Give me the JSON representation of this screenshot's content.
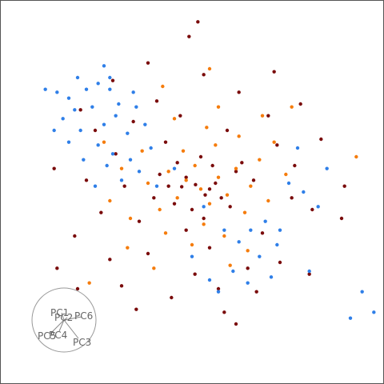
{
  "chart_data": {
    "type": "scatter",
    "title": "",
    "xlabel": "",
    "ylabel": "",
    "grid": false,
    "legend": "none",
    "xlim": [
      -6,
      6
    ],
    "ylim": [
      -6,
      6
    ],
    "series": [
      {
        "color": "#7a0b0b",
        "note_count_estimate": 1100,
        "points": [
          [
            -0.35,
            0.18
          ],
          [
            0.12,
            0.25
          ],
          [
            0.45,
            -0.1
          ],
          [
            -0.6,
            -0.4
          ],
          [
            0.8,
            0.3
          ],
          [
            -1.1,
            0.6
          ],
          [
            1.3,
            -0.5
          ],
          [
            -0.2,
            -1.3
          ],
          [
            0.3,
            1.2
          ],
          [
            1.7,
            1.0
          ],
          [
            -1.8,
            -1.0
          ],
          [
            2.1,
            0.4
          ],
          [
            -2.3,
            0.2
          ],
          [
            0.6,
            -1.9
          ],
          [
            -0.9,
            1.7
          ],
          [
            2.4,
            -1.4
          ],
          [
            -1.5,
            -2.1
          ],
          [
            1.2,
            2.1
          ],
          [
            -2.6,
            1.3
          ],
          [
            2.9,
            1.6
          ],
          [
            -3.1,
            -0.7
          ],
          [
            3.4,
            -0.2
          ],
          [
            0.1,
            -2.8
          ],
          [
            -0.4,
            2.6
          ],
          [
            1.9,
            -2.6
          ],
          [
            -2.0,
            2.4
          ],
          [
            2.6,
            2.6
          ],
          [
            -2.8,
            -2.3
          ],
          [
            3.5,
            0.9
          ],
          [
            -3.6,
            0.4
          ],
          [
            0.9,
            -3.3
          ],
          [
            -1.2,
            3.1
          ],
          [
            4.1,
            -0.6
          ],
          [
            -4.0,
            -1.5
          ],
          [
            1.6,
            3.4
          ],
          [
            -0.7,
            -3.6
          ],
          [
            2.2,
            -3.4
          ],
          [
            -3.3,
            2.1
          ],
          [
            3.0,
            -2.4
          ],
          [
            -2.4,
            -3.2
          ],
          [
            4.4,
            1.8
          ],
          [
            -1.9,
            -4.0
          ],
          [
            0.4,
            4.0
          ],
          [
            3.7,
            3.0
          ],
          [
            -3.8,
            2.8
          ],
          [
            1.1,
            -4.1
          ],
          [
            5.1,
            -0.9
          ],
          [
            -4.6,
            -2.6
          ],
          [
            0.2,
            5.8
          ],
          [
            -0.1,
            5.3
          ],
          [
            2.8,
            4.1
          ],
          [
            -2.7,
            3.8
          ],
          [
            4.0,
            -2.8
          ],
          [
            -3.9,
            -3.3
          ],
          [
            5.2,
            0.2
          ],
          [
            -4.7,
            0.8
          ],
          [
            1.5,
            -4.5
          ],
          [
            -1.5,
            4.4
          ],
          [
            0.7,
            0.9
          ],
          [
            -0.8,
            0.2
          ],
          [
            0.0,
            -0.6
          ],
          [
            1.0,
            -0.2
          ],
          [
            -0.5,
            1.0
          ],
          [
            0.4,
            -0.9
          ],
          [
            -1.3,
            -0.2
          ],
          [
            1.5,
            0.7
          ],
          [
            -0.2,
            0.5
          ],
          [
            0.6,
            0.1
          ]
        ]
      },
      {
        "color": "#f57c0c",
        "note_count_estimate": 350,
        "points": [
          [
            0.3,
            0.1
          ],
          [
            0.6,
            -0.4
          ],
          [
            -0.2,
            0.4
          ],
          [
            0.9,
            0.5
          ],
          [
            -0.5,
            -0.2
          ],
          [
            1.2,
            -0.1
          ],
          [
            0.1,
            0.9
          ],
          [
            -0.8,
            0.7
          ],
          [
            1.5,
            0.8
          ],
          [
            0.4,
            -1.1
          ],
          [
            -1.1,
            -0.6
          ],
          [
            1.8,
            -0.7
          ],
          [
            -0.3,
            1.4
          ],
          [
            2.0,
            0.2
          ],
          [
            0.8,
            1.6
          ],
          [
            -1.5,
            0.3
          ],
          [
            1.1,
            -1.5
          ],
          [
            2.3,
            1.1
          ],
          [
            -0.9,
            -1.4
          ],
          [
            0.0,
            -1.8
          ],
          [
            1.6,
            1.9
          ],
          [
            -1.7,
            1.4
          ],
          [
            2.6,
            -0.3
          ],
          [
            -2.1,
            -0.9
          ],
          [
            0.5,
            2.2
          ],
          [
            1.9,
            -2.0
          ],
          [
            -0.6,
            2.5
          ],
          [
            2.8,
            1.7
          ],
          [
            -2.4,
            0.8
          ],
          [
            1.3,
            -2.5
          ],
          [
            -2.2,
            -1.9
          ],
          [
            3.2,
            0.6
          ],
          [
            -1.3,
            -2.6
          ],
          [
            0.9,
            2.9
          ],
          [
            2.4,
            2.6
          ],
          [
            -2.8,
            -0.3
          ],
          [
            5.6,
            1.2
          ],
          [
            -3.5,
            -3.1
          ],
          [
            0.6,
            4.2
          ],
          [
            -1.0,
            3.6
          ],
          [
            3.4,
            2.9
          ],
          [
            -3.0,
            1.7
          ]
        ]
      },
      {
        "color": "#2f7fe8",
        "note_count_estimate": 250,
        "points": [
          [
            -5.0,
            3.5
          ],
          [
            -4.6,
            3.4
          ],
          [
            -4.2,
            3.2
          ],
          [
            -3.6,
            3.5
          ],
          [
            -3.2,
            3.7
          ],
          [
            -2.8,
            3.5
          ],
          [
            -2.5,
            3.0
          ],
          [
            -3.4,
            2.9
          ],
          [
            -4.0,
            2.8
          ],
          [
            -4.4,
            2.5
          ],
          [
            -3.8,
            2.1
          ],
          [
            -3.0,
            2.3
          ],
          [
            -2.6,
            2.6
          ],
          [
            -2.2,
            2.0
          ],
          [
            -3.2,
            1.6
          ],
          [
            -2.7,
            1.3
          ],
          [
            -4.2,
            1.7
          ],
          [
            -2.1,
            1.1
          ],
          [
            -1.6,
            2.3
          ],
          [
            -2.9,
            0.9
          ],
          [
            -3.7,
            1.1
          ],
          [
            -2.4,
            0.4
          ],
          [
            -3.3,
            0.2
          ],
          [
            -1.8,
            0.7
          ],
          [
            -1.4,
            1.5
          ],
          [
            -2.8,
            3.9
          ],
          [
            -1.9,
            2.9
          ],
          [
            -4.7,
            2.1
          ],
          [
            -3.0,
            4.3
          ],
          [
            -2.0,
            3.4
          ],
          [
            -3.9,
            3.9
          ],
          [
            -1.2,
            0.2
          ],
          [
            -0.6,
            0.8
          ],
          [
            0.4,
            -0.5
          ],
          [
            1.1,
            -1.3
          ],
          [
            1.6,
            -1.7
          ],
          [
            2.0,
            -1.3
          ],
          [
            2.5,
            -1.0
          ],
          [
            2.3,
            -2.2
          ],
          [
            1.4,
            -2.7
          ],
          [
            0.6,
            -3.0
          ],
          [
            2.9,
            -1.8
          ],
          [
            3.3,
            0.3
          ],
          [
            3.8,
            0.0
          ],
          [
            4.3,
            -0.5
          ],
          [
            3.6,
            1.5
          ],
          [
            4.6,
            0.8
          ],
          [
            3.0,
            -1.3
          ],
          [
            5.8,
            -3.4
          ],
          [
            5.4,
            -4.3
          ],
          [
            6.2,
            -4.1
          ],
          [
            0.9,
            -3.4
          ],
          [
            2.7,
            -2.9
          ],
          [
            1.9,
            -3.1
          ],
          [
            4.0,
            -2.7
          ],
          [
            0.0,
            -2.2
          ]
        ]
      }
    ]
  },
  "biplot": {
    "labels": [
      "PC1",
      "PC2",
      "PC6",
      "PC5",
      "PC4",
      "PC3"
    ]
  }
}
